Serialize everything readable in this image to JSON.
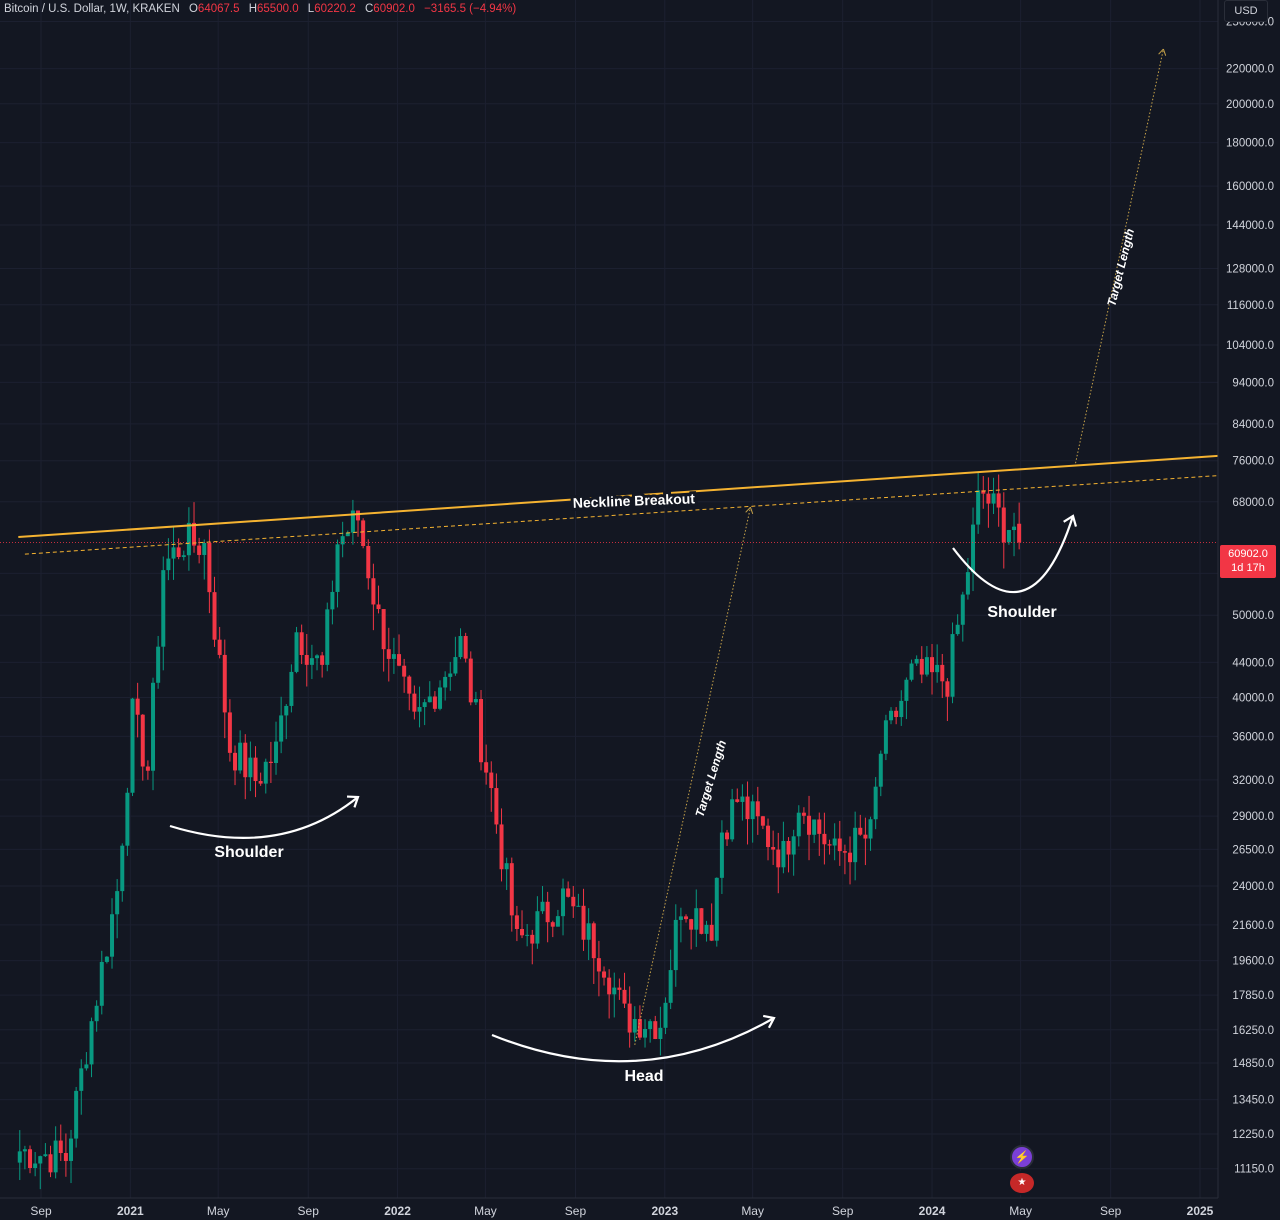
{
  "header": {
    "symbol": "Bitcoin / U.S. Dollar, 1W, KRAKEN",
    "o_label": "O",
    "o_value": "64067.5",
    "h_label": "H",
    "h_value": "65500.0",
    "l_label": "L",
    "l_value": "60220.2",
    "c_label": "C",
    "c_value": "60902.0",
    "change": "−3165.5 (−4.94%)"
  },
  "currency_button": "USD",
  "price_tag": {
    "price": "60902.0",
    "countdown": "1d 17h"
  },
  "icons": {
    "bolt": "lightning-icon",
    "flag": "us-flag-icon"
  },
  "colors": {
    "up": "#089981",
    "down": "#f23645",
    "neckline": "#f5b331",
    "annotation": "#ffffff",
    "background": "#131722"
  },
  "chart_data": {
    "type": "candlestick",
    "y_scale": "log",
    "ylim": [
      10300,
      265000
    ],
    "y_ticks": [
      "250000.0",
      "220000.0",
      "200000.0",
      "180000.0",
      "160000.0",
      "144000.0",
      "128000.0",
      "116000.0",
      "104000.0",
      "94000.0",
      "84000.0",
      "76000.0",
      "68000.0",
      "56000.0",
      "50000.0",
      "44000.0",
      "40000.0",
      "36000.0",
      "32000.0",
      "29000.0",
      "26500.0",
      "24000.0",
      "21600.0",
      "19600.0",
      "17850.0",
      "16250.0",
      "14850.0",
      "13450.0",
      "12250.0",
      "11150.0"
    ],
    "x_ticks": [
      "Sep",
      "2021",
      "May",
      "Sep",
      "2022",
      "May",
      "Sep",
      "2023",
      "May",
      "Sep",
      "2024",
      "May",
      "Sep",
      "2025"
    ],
    "x_tick_dates": [
      "2020-09-01",
      "2021-01-01",
      "2021-05-01",
      "2021-09-01",
      "2022-01-01",
      "2022-05-01",
      "2022-09-01",
      "2023-01-01",
      "2023-05-01",
      "2023-09-01",
      "2024-01-01",
      "2024-05-01",
      "2024-09-01",
      "2025-01-01"
    ],
    "current_price": 60902.0,
    "key_points": [
      {
        "date": "2020-08-03",
        "close": 11700
      },
      {
        "date": "2020-10-05",
        "close": 11500
      },
      {
        "date": "2020-11-02",
        "close": 15500
      },
      {
        "date": "2020-12-14",
        "close": 23700
      },
      {
        "date": "2021-01-04",
        "close": 38000
      },
      {
        "date": "2021-01-25",
        "close": 33000
      },
      {
        "date": "2021-02-15",
        "close": 57000
      },
      {
        "date": "2021-03-15",
        "close": 61000
      },
      {
        "date": "2021-04-12",
        "close": 60500
      },
      {
        "date": "2021-05-17",
        "close": 35000
      },
      {
        "date": "2021-06-21",
        "close": 32000
      },
      {
        "date": "2021-07-19",
        "close": 34500
      },
      {
        "date": "2021-08-16",
        "close": 48000
      },
      {
        "date": "2021-09-20",
        "close": 43000
      },
      {
        "date": "2021-10-11",
        "close": 61000
      },
      {
        "date": "2021-11-08",
        "close": 65000
      },
      {
        "date": "2021-12-06",
        "close": 49500
      },
      {
        "date": "2022-01-24",
        "close": 37000
      },
      {
        "date": "2022-03-28",
        "close": 46300
      },
      {
        "date": "2022-05-09",
        "close": 31000
      },
      {
        "date": "2022-06-13",
        "close": 20500
      },
      {
        "date": "2022-08-15",
        "close": 23300
      },
      {
        "date": "2022-10-10",
        "close": 19600
      },
      {
        "date": "2022-11-07",
        "close": 16800
      },
      {
        "date": "2022-12-26",
        "close": 16600
      },
      {
        "date": "2023-01-23",
        "close": 23000
      },
      {
        "date": "2023-03-06",
        "close": 21600
      },
      {
        "date": "2023-03-20",
        "close": 28000
      },
      {
        "date": "2023-04-10",
        "close": 30300
      },
      {
        "date": "2023-06-12",
        "close": 26000
      },
      {
        "date": "2023-07-03",
        "close": 30300
      },
      {
        "date": "2023-08-21",
        "close": 26100
      },
      {
        "date": "2023-10-09",
        "close": 27500
      },
      {
        "date": "2023-10-23",
        "close": 34500
      },
      {
        "date": "2023-12-04",
        "close": 42500
      },
      {
        "date": "2024-01-22",
        "close": 42000
      },
      {
        "date": "2024-02-12",
        "close": 52000
      },
      {
        "date": "2024-03-04",
        "close": 68000
      },
      {
        "date": "2024-03-11",
        "close": 69500
      },
      {
        "date": "2024-04-08",
        "close": 64000
      },
      {
        "date": "2024-04-22",
        "close": 63800
      },
      {
        "date": "2024-04-29",
        "close": 60902
      }
    ],
    "annotations": {
      "neckline_label": "Neckline Breakout",
      "shoulder_left_label": "Shoulder",
      "head_label": "Head",
      "shoulder_right_label": "Shoulder",
      "target_label_1": "Target Length",
      "target_label_2": "Target Length"
    }
  }
}
